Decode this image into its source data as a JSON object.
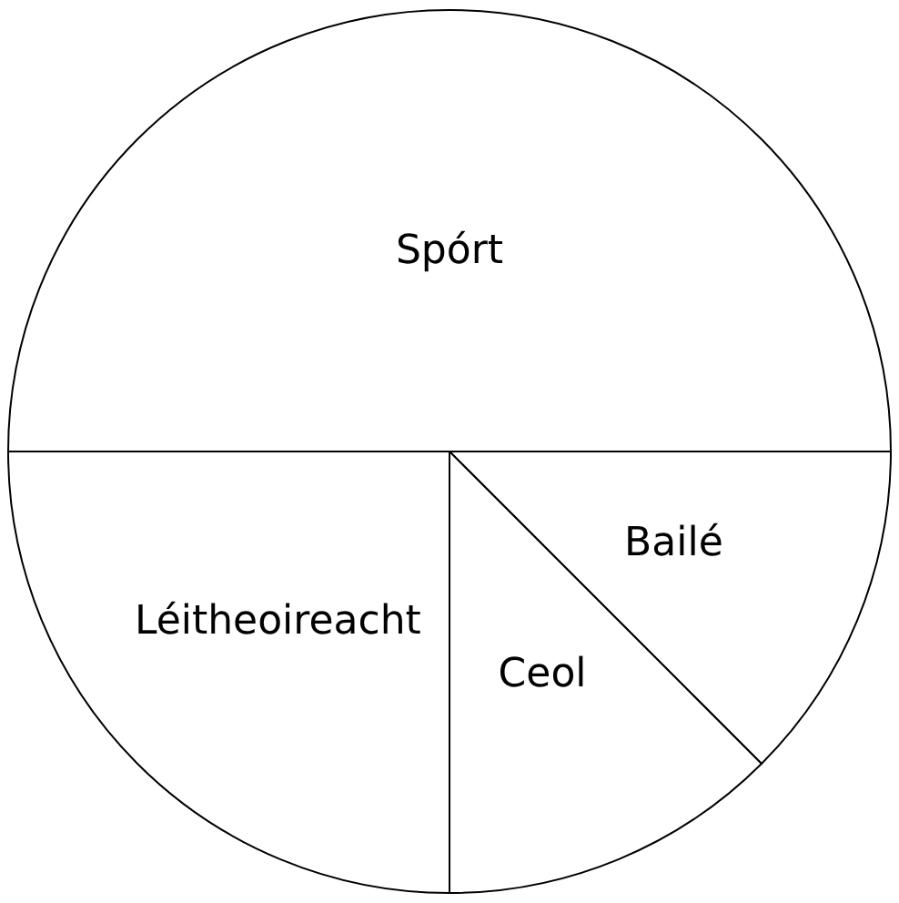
{
  "chart_data": {
    "type": "pie",
    "categories": [
      "Spórt",
      "Bailé",
      "Ceol",
      "Léitheoireacht"
    ],
    "values": [
      50,
      12.5,
      12.5,
      25
    ],
    "colors": [
      "#ffffff",
      "#ffffff",
      "#ffffff",
      "#ffffff"
    ],
    "legend": false
  }
}
